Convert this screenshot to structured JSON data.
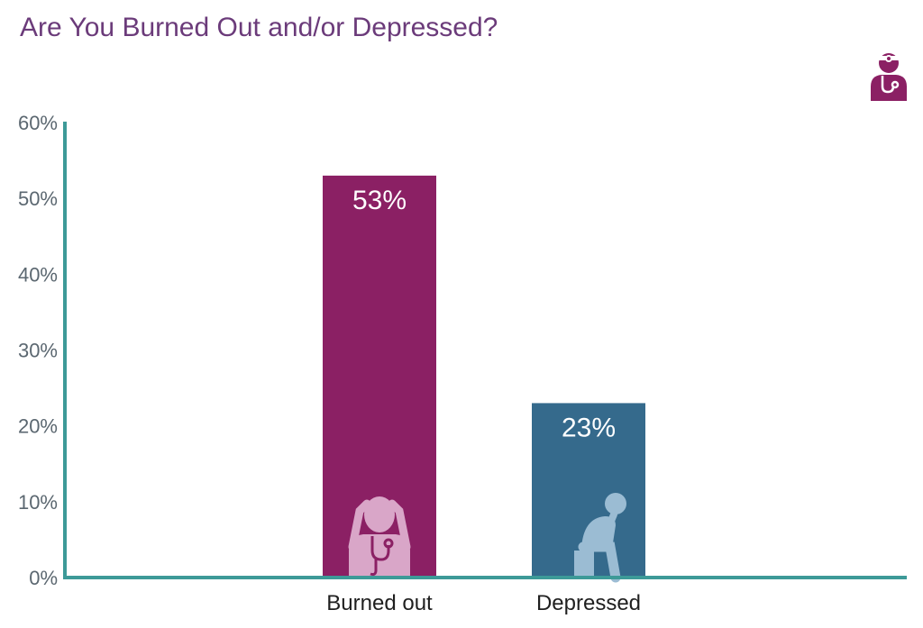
{
  "title": "Are You Burned Out and/or Depressed?",
  "header_icon": "doctor-icon",
  "colors": {
    "burned_out": "#8b2064",
    "depressed": "#356a8c",
    "axis": "#3d9a98",
    "title": "#6b3b7a",
    "burned_out_icon": "#d9a6c8",
    "depressed_icon": "#9bbcd3"
  },
  "chart_data": {
    "type": "bar",
    "title": "Are You Burned Out and/or Depressed?",
    "categories": [
      "Burned out",
      "Depressed"
    ],
    "values": [
      53,
      23
    ],
    "value_labels": [
      "53%",
      "23%"
    ],
    "y_ticks": [
      "0%",
      "10%",
      "20%",
      "30%",
      "40%",
      "50%",
      "60%"
    ],
    "ylim": [
      0,
      60
    ],
    "grid": false,
    "legend": "none",
    "bar_icons": [
      "stressed-doctor-icon",
      "depressed-person-icon"
    ]
  }
}
